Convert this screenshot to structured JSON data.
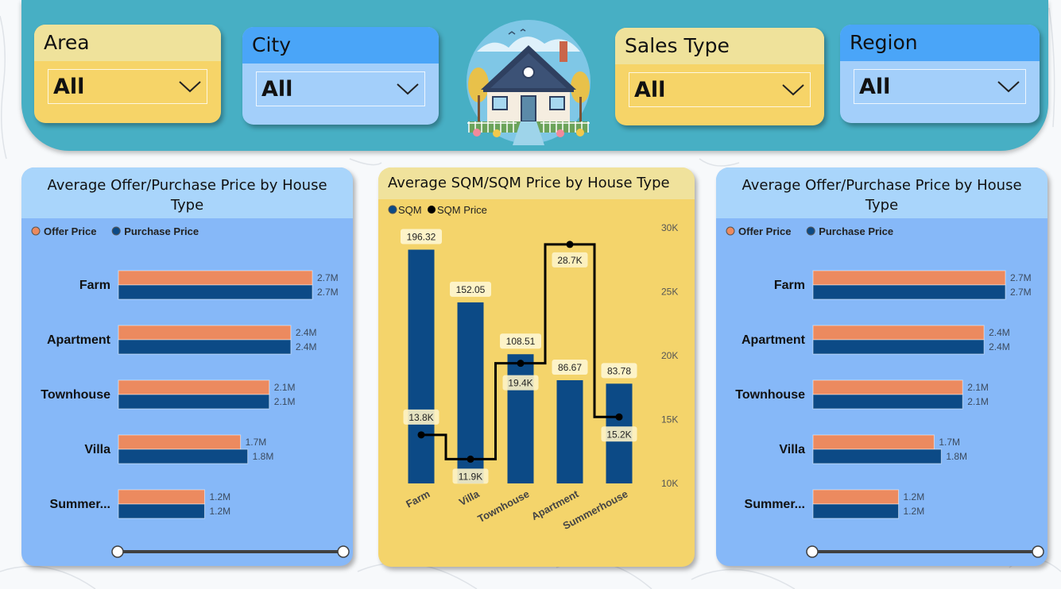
{
  "filters": [
    {
      "label": "Area",
      "value": "All",
      "theme": "yellow"
    },
    {
      "label": "City",
      "value": "All",
      "theme": "blue"
    },
    {
      "label": "Sales Type",
      "value": "All",
      "theme": "yellow"
    },
    {
      "label": "Region",
      "value": "All",
      "theme": "blue"
    }
  ],
  "colors": {
    "offer": "#ec8a5f",
    "purchase": "#0c4a86",
    "sqm_bar": "#0c4a86",
    "line": "#000000",
    "label_bg": "#fdf3c8"
  },
  "chart_data": [
    {
      "type": "bar",
      "orientation": "horizontal",
      "title": "Average Offer/Purchase Price by House Type",
      "categories": [
        "Farm",
        "Apartment",
        "Townhouse",
        "Villa",
        "Summer..."
      ],
      "series": [
        {
          "name": "Offer Price",
          "values": [
            2.7,
            2.4,
            2.1,
            1.7,
            1.2
          ],
          "labels": [
            "2.7M",
            "2.4M",
            "2.1M",
            "1.7M",
            "1.2M"
          ]
        },
        {
          "name": "Purchase Price",
          "values": [
            2.7,
            2.4,
            2.1,
            1.8,
            1.2
          ],
          "labels": [
            "2.7M",
            "2.4M",
            "2.1M",
            "1.8M",
            "1.2M"
          ]
        }
      ],
      "xlim": [
        0,
        2.7
      ],
      "legend": "top-left",
      "grid": false
    },
    {
      "type": "bar",
      "combo": "bar-line",
      "title": "Average SQM/SQM Price by House Type",
      "categories": [
        "Farm",
        "Villa",
        "Townhouse",
        "Apartment",
        "Summerhouse"
      ],
      "series": [
        {
          "name": "SQM",
          "kind": "bar",
          "values": [
            196.32,
            152.05,
            108.51,
            86.67,
            83.78
          ],
          "labels": [
            "196.32",
            "152.05",
            "108.51",
            "86.67",
            "83.78"
          ]
        },
        {
          "name": "SQM Price",
          "kind": "line",
          "values": [
            13800,
            11900,
            19400,
            28700,
            15200
          ],
          "labels": [
            "13.8K",
            "11.9K",
            "19.4K",
            "28.7K",
            "15.2K"
          ]
        }
      ],
      "ylim": [
        0,
        200
      ],
      "y2lim": [
        10000,
        30000
      ],
      "y2ticks": [
        "30K",
        "25K",
        "20K",
        "15K",
        "10K"
      ],
      "y2tick_values": [
        30000,
        25000,
        20000,
        15000,
        10000
      ],
      "legend": "top-left",
      "grid": false
    },
    {
      "type": "bar",
      "orientation": "horizontal",
      "title": "Average Offer/Purchase Price by House Type",
      "categories": [
        "Farm",
        "Apartment",
        "Townhouse",
        "Villa",
        "Summer..."
      ],
      "series": [
        {
          "name": "Offer Price",
          "values": [
            2.7,
            2.4,
            2.1,
            1.7,
            1.2
          ],
          "labels": [
            "2.7M",
            "2.4M",
            "2.1M",
            "1.7M",
            "1.2M"
          ]
        },
        {
          "name": "Purchase Price",
          "values": [
            2.7,
            2.4,
            2.1,
            1.8,
            1.2
          ],
          "labels": [
            "2.7M",
            "2.4M",
            "2.1M",
            "1.8M",
            "1.2M"
          ]
        }
      ],
      "xlim": [
        0,
        2.7
      ],
      "legend": "top-left",
      "grid": false
    }
  ]
}
